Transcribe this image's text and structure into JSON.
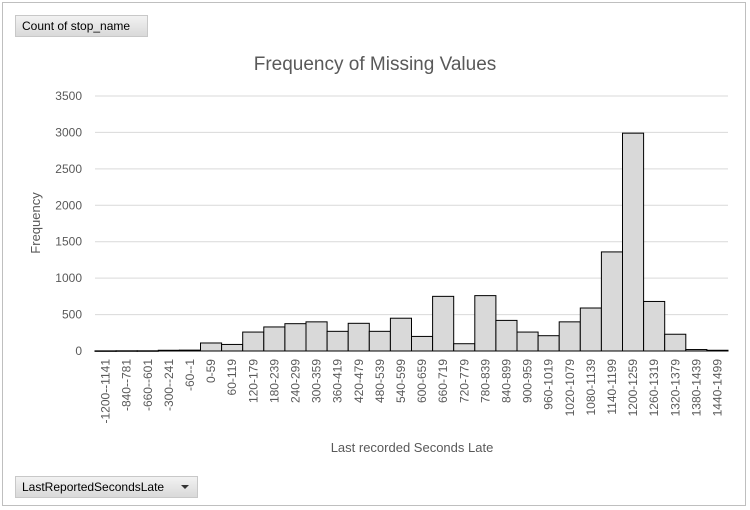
{
  "pivot": {
    "value_field": "Count of stop_name",
    "axis_field": "LastReportedSecondsLate"
  },
  "chart_data": {
    "type": "bar",
    "title": "Frequency of Missing Values",
    "xlabel": "Last recorded Seconds Late",
    "ylabel": "Frequency",
    "ylim": [
      0,
      3500
    ],
    "yticks": [
      0,
      500,
      1000,
      1500,
      2000,
      2500,
      3000,
      3500
    ],
    "grid": true,
    "legend": "none",
    "bar_color": "#d9d9d9",
    "bar_edge_color": "#000000",
    "categories": [
      "-1200--1141",
      "-840--781",
      "-660--601",
      "-300--241",
      "-60--1",
      "0-59",
      "60-119",
      "120-179",
      "180-239",
      "240-299",
      "300-359",
      "360-419",
      "420-479",
      "480-539",
      "540-599",
      "600-659",
      "660-719",
      "720-779",
      "780-839",
      "840-899",
      "900-959",
      "960-1019",
      "1020-1079",
      "1080-1139",
      "1140-1199",
      "1200-1259",
      "1260-1319",
      "1320-1379",
      "1380-1439",
      "1440-1499"
    ],
    "category_labels": [
      "-1200--1141",
      "-840--781",
      "-660--601",
      "-300--241",
      "-60--1",
      "0-59",
      "60-119",
      "120-179",
      "180-239",
      "240-299",
      "300-359",
      "360-419",
      "420-479",
      "480-539",
      "540-599",
      "600-659",
      "660-719",
      "720-779",
      "780-839",
      "840-899",
      "900-959",
      "960-1019",
      "1020-1079",
      "1080-1139",
      "1140-1199",
      "1200-1259",
      "1260-1319",
      "1320-1379",
      "1380-1439",
      "1440-1499"
    ],
    "values": [
      2,
      3,
      3,
      10,
      12,
      110,
      90,
      260,
      330,
      375,
      400,
      270,
      380,
      270,
      450,
      200,
      750,
      100,
      760,
      420,
      260,
      210,
      400,
      590,
      1360,
      2990,
      680,
      230,
      20,
      10
    ]
  }
}
